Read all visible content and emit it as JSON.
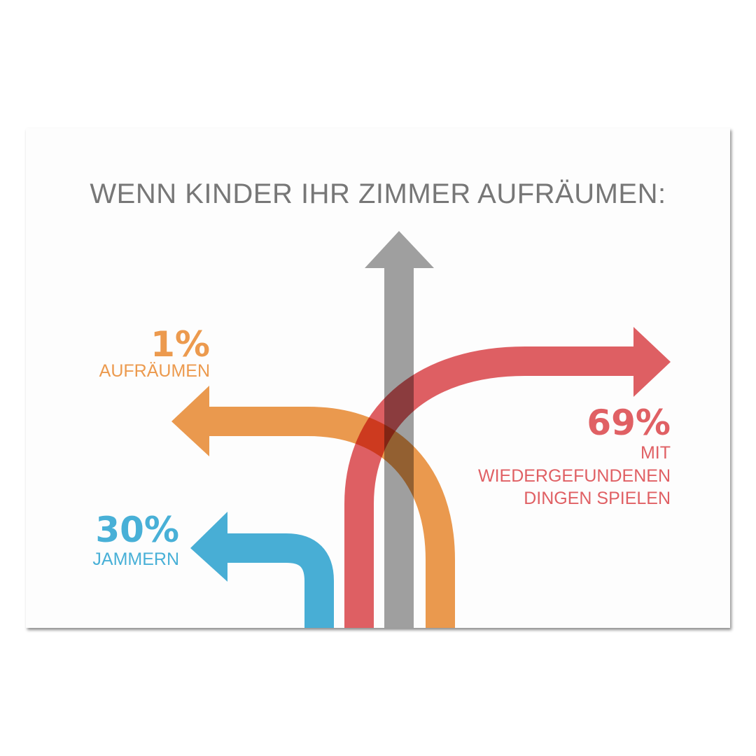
{
  "title": "WENN KINDER IHR ZIMMER AUFRÄUMEN:",
  "items": [
    {
      "percent": "1%",
      "label": [
        "AUFRÄUMEN"
      ],
      "color": "#ec9a4e",
      "direction": "left"
    },
    {
      "percent": "30%",
      "label": [
        "JAMMERN"
      ],
      "color": "#48b0d7",
      "direction": "left"
    },
    {
      "percent": "69%",
      "label": [
        "MIT",
        "WIEDERGEFUNDENEN",
        "DINGEN SPIELEN"
      ],
      "color": "#e06064",
      "direction": "right"
    }
  ],
  "center_arrow_color": "#a0a0a0"
}
